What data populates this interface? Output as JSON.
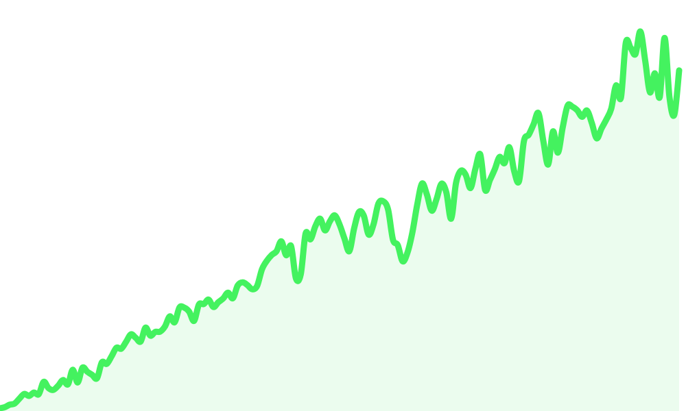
{
  "chart_data": {
    "type": "area",
    "title": "",
    "xlabel": "",
    "ylabel": "",
    "grid": false,
    "legend": "none",
    "line_color": "#44f25f",
    "fill_color": "#ebfcee",
    "x": [
      0,
      1,
      2,
      3,
      4,
      5,
      6,
      7,
      8,
      9,
      10,
      11,
      12,
      13,
      14,
      15,
      16,
      17,
      18,
      19,
      20,
      21,
      22,
      23,
      24,
      25,
      26,
      27,
      28,
      29,
      30,
      31,
      32,
      33,
      34,
      35,
      36,
      37,
      38,
      39,
      40,
      41,
      42,
      43,
      44,
      45,
      46,
      47,
      48,
      49,
      50,
      51,
      52,
      53,
      54,
      55,
      56,
      57,
      58,
      59,
      60,
      61,
      62,
      63,
      64,
      65,
      66,
      67,
      68,
      69,
      70,
      71,
      72,
      73,
      74,
      75,
      76,
      77,
      78,
      79,
      80,
      81,
      82,
      83,
      84,
      85,
      86,
      87,
      88,
      89,
      90,
      91,
      92,
      93,
      94,
      95,
      96,
      97,
      98,
      99,
      100,
      101,
      102,
      103,
      104,
      105,
      106,
      107,
      108,
      109,
      110,
      111,
      112,
      113,
      114,
      115,
      116,
      117,
      118,
      119,
      120,
      121,
      122,
      123,
      124,
      125,
      126,
      127,
      128,
      129,
      130,
      131,
      132,
      133,
      134,
      135,
      136,
      137,
      138,
      139,
      140
    ],
    "values": [
      0,
      0.5,
      1.6,
      2.1,
      4.3,
      6.4,
      5.5,
      7.0,
      6.3,
      11.8,
      9.0,
      8.2,
      10.1,
      12.6,
      10.7,
      17.2,
      11.5,
      18.1,
      16.3,
      14.9,
      13.4,
      20.5,
      19.8,
      23.2,
      27.0,
      26.6,
      29.7,
      33.0,
      31.4,
      29.8,
      36.0,
      32.4,
      34.1,
      34.2,
      36.5,
      41.0,
      38.4,
      45.0,
      44.9,
      43.1,
      39.0,
      46.3,
      46.5,
      48.5,
      45.2,
      47.3,
      49.0,
      51.6,
      49.1,
      54.8,
      56.2,
      55.0,
      53.1,
      54.6,
      62.0,
      65.8,
      68.4,
      70.1,
      74.5,
      68.3,
      72.4,
      58.0,
      59.8,
      78.0,
      75.4,
      81.2,
      84.6,
      79.4,
      83.4,
      86.1,
      82.0,
      75.8,
      70.1,
      80.3,
      87.6,
      85.9,
      77.5,
      82.1,
      91.3,
      92.4,
      88.7,
      75.3,
      72.8,
      65.6,
      69.5,
      78.4,
      90.8,
      100.3,
      95.4,
      88.2,
      93.4,
      100.2,
      96.4,
      84.6,
      100.5,
      106.0,
      104.2,
      98.3,
      106.9,
      113.3,
      97.5,
      101.9,
      106.7,
      112.2,
      109.4,
      116.5,
      105.8,
      101.4,
      119.2,
      122.1,
      126.8,
      131.7,
      119.3,
      108.8,
      123.6,
      114.1,
      125.4,
      135.0,
      134.6,
      133.0,
      130.1,
      132.9,
      127.3,
      120.5,
      124.9,
      128.9,
      133.7,
      144.1,
      138.6,
      163.1,
      160.9,
      158.1,
      168.2,
      155.2,
      141.0,
      149.5,
      138.9,
      165.3,
      139.0,
      131.0,
      150.8
    ],
    "ylim": [
      0,
      170
    ]
  }
}
